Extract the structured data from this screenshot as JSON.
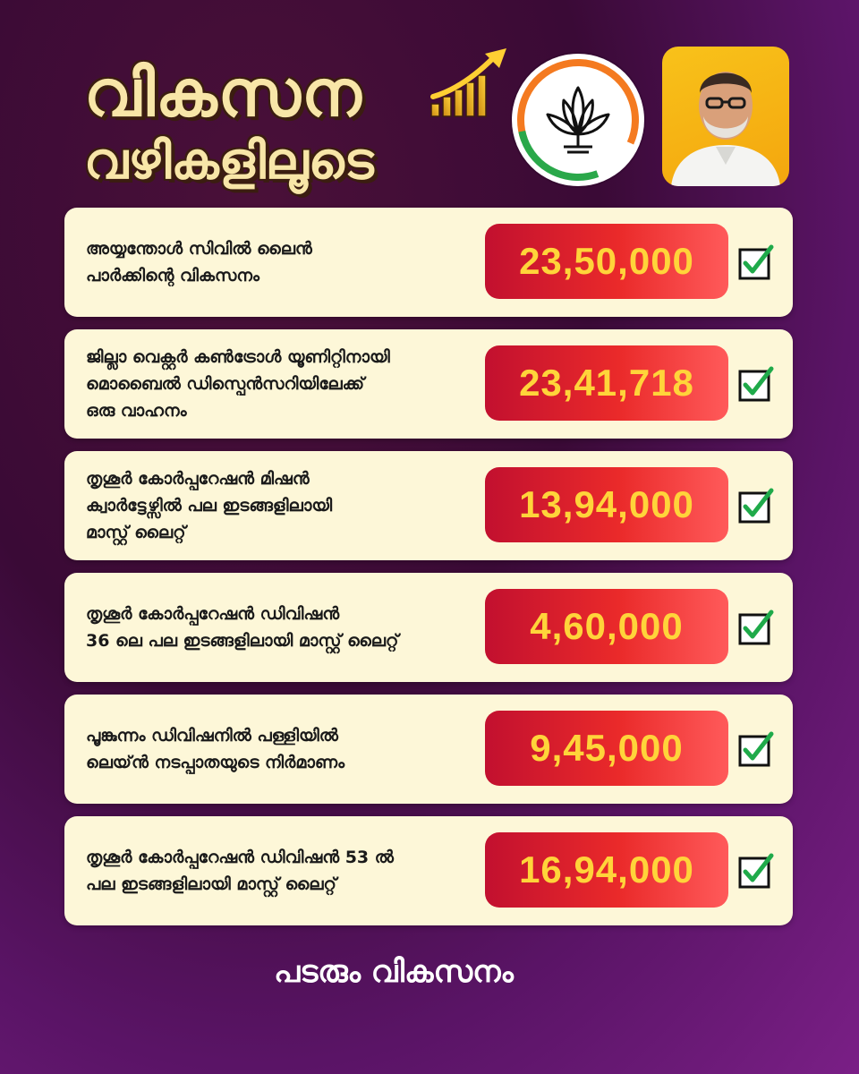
{
  "header": {
    "title_line1": "വികസന",
    "title_line2": "വഴികളിലൂടെ"
  },
  "colors": {
    "card_bg": "#fdf7d8",
    "amount_gradient_start": "#c2102f",
    "amount_gradient_end": "#ff5a5a",
    "amount_text": "#ffd43a",
    "check_green": "#1faa4a",
    "title_cream": "#f8e6a8",
    "logo_saffron": "#f47a20",
    "logo_green": "#2aa84a"
  },
  "projects": [
    {
      "description": "അയ്യന്തോൾ സിവിൽ ലൈൻ\nപാർക്കിന്റെ വികസനം",
      "amount": "23,50,000",
      "completed_icon": "check-icon"
    },
    {
      "description": "ജില്ലാ വെക്റ്റർ കൺട്രോൾ യൂണിറ്റിനായി\nമൊബൈൽ ഡിസ്പെൻസറിയിലേക്ക്\nഒരു വാഹനം",
      "amount": "23,41,718",
      "completed_icon": "check-icon"
    },
    {
      "description": "തൃശൂർ കോർപ്പറേഷൻ മിഷൻ\nക്വാർട്ടേഴ്സിൽ പല ഇടങ്ങളിലായി\nമാസ്റ്റ് ലൈറ്റ്",
      "amount": "13,94,000",
      "completed_icon": "check-icon"
    },
    {
      "description": "തൃശൂർ കോർപ്പറേഷൻ ഡിവിഷൻ\n36 ലെ പല ഇടങ്ങളിലായി മാസ്റ്റ് ലൈറ്റ്",
      "amount": "4,60,000",
      "completed_icon": "check-icon"
    },
    {
      "description": "പൂങ്കുന്നം ഡിവിഷനിൽ പള്ളിയിൽ\nലെയ്ൻ നടപ്പാതയുടെ നിർമാണം",
      "amount": "9,45,000",
      "completed_icon": "check-icon"
    },
    {
      "description": "തൃശൂർ കോർപ്പറേഷൻ ഡിവിഷൻ 53 ൽ\nപല ഇടങ്ങളിലായി മാസ്റ്റ് ലൈറ്റ്",
      "amount": "16,94,000",
      "completed_icon": "check-icon"
    }
  ],
  "footer": {
    "tagline": "പടരും വികസനം"
  }
}
